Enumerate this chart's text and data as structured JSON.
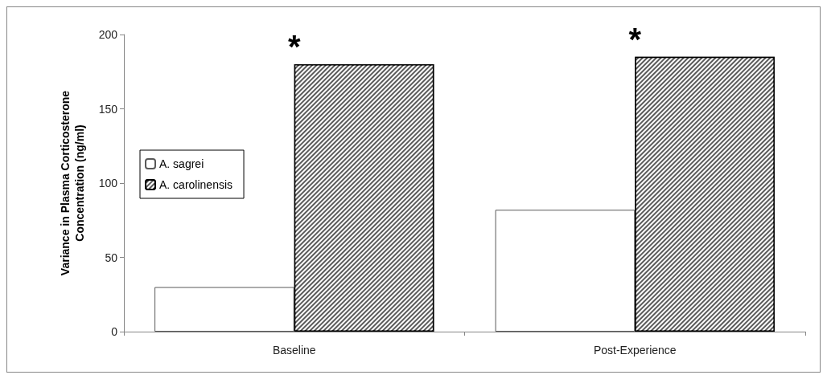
{
  "chart_data": {
    "type": "bar",
    "ylabel": "Variance in Plasma Corticosterone Concentration (ng/ml)",
    "categories": [
      "Baseline",
      "Post-Experience"
    ],
    "series": [
      {
        "name": "A. sagrei",
        "color": "#ffffff",
        "values": [
          30,
          82
        ]
      },
      {
        "name": "A. carolinensis",
        "color": "#5a5a5a",
        "values": [
          180,
          185
        ]
      }
    ],
    "ylim": [
      0,
      200
    ],
    "yticks": [
      0,
      50,
      100,
      150,
      200
    ],
    "grid": false,
    "legend": "left",
    "annotations": [
      "*",
      "*"
    ]
  }
}
